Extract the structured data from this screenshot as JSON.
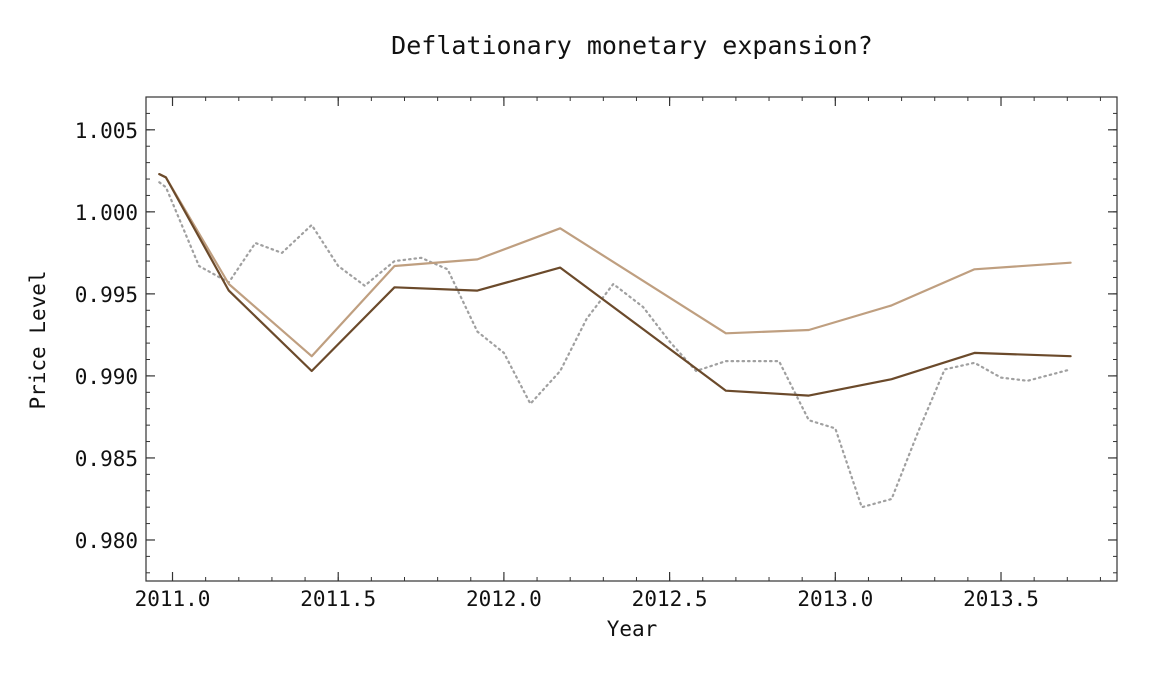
{
  "chart_data": {
    "type": "line",
    "title": "Deflationary monetary expansion?",
    "xlabel": "Year",
    "ylabel": "Price Level",
    "xlim": [
      2010.92,
      2013.85
    ],
    "ylim": [
      0.9775,
      1.007
    ],
    "x_ticks": [
      2011.0,
      2011.5,
      2012.0,
      2012.5,
      2013.0,
      2013.5
    ],
    "x_tick_labels": [
      "2011.0",
      "2011.5",
      "2012.0",
      "2012.5",
      "2013.0",
      "2013.5"
    ],
    "y_ticks": [
      0.98,
      0.985,
      0.99,
      0.995,
      1.0,
      1.005
    ],
    "y_tick_labels": [
      "0.980",
      "0.985",
      "0.990",
      "0.995",
      "1.000",
      "1.005"
    ],
    "grid": false,
    "legend": "none",
    "series": [
      {
        "color": "#bf9f80",
        "style": "solid",
        "x": [
          2010.96,
          2010.98,
          2011.17,
          2011.42,
          2011.67,
          2011.92,
          2012.17,
          2012.67,
          2012.92,
          2013.17,
          2013.42,
          2013.71
        ],
        "y": [
          1.0023,
          1.0021,
          0.9956,
          0.9912,
          0.9967,
          0.9971,
          0.999,
          0.9926,
          0.9928,
          0.9943,
          0.9965,
          0.9969
        ]
      },
      {
        "color": "#6b4a2b",
        "style": "solid",
        "x": [
          2010.96,
          2010.98,
          2011.17,
          2011.42,
          2011.67,
          2011.92,
          2012.17,
          2012.67,
          2012.92,
          2013.17,
          2013.42,
          2013.71
        ],
        "y": [
          1.0023,
          1.0021,
          0.9952,
          0.9903,
          0.9954,
          0.9952,
          0.9966,
          0.9891,
          0.9888,
          0.9898,
          0.9914,
          0.9912
        ]
      },
      {
        "color": "#a0a0a0",
        "style": "dotted",
        "x": [
          2010.96,
          2010.98,
          2011.08,
          2011.17,
          2011.25,
          2011.33,
          2011.42,
          2011.5,
          2011.58,
          2011.67,
          2011.75,
          2011.83,
          2011.92,
          2012.0,
          2012.08,
          2012.17,
          2012.25,
          2012.33,
          2012.42,
          2012.5,
          2012.58,
          2012.67,
          2012.75,
          2012.83,
          2012.92,
          2013.0,
          2013.08,
          2013.17,
          2013.25,
          2013.33,
          2013.42,
          2013.5,
          2013.58,
          2013.71
        ],
        "y": [
          1.0018,
          1.0015,
          0.9967,
          0.9957,
          0.9981,
          0.9975,
          0.9992,
          0.9967,
          0.9955,
          0.997,
          0.9972,
          0.9965,
          0.9927,
          0.9914,
          0.9883,
          0.9903,
          0.9935,
          0.9956,
          0.9942,
          0.9921,
          0.9903,
          0.9909,
          0.9909,
          0.9909,
          0.9873,
          0.9868,
          0.982,
          0.9825,
          0.9866,
          0.9904,
          0.9908,
          0.9899,
          0.9897,
          0.9904
        ]
      }
    ]
  }
}
